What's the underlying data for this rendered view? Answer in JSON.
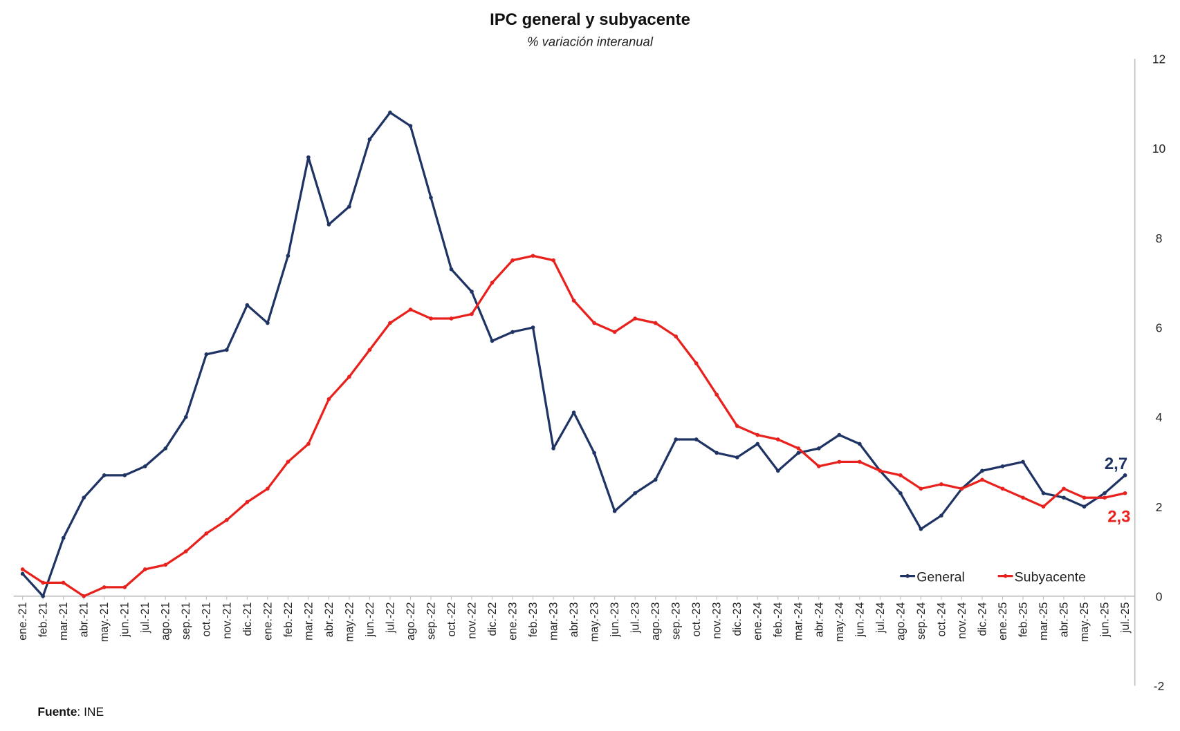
{
  "chart_data": {
    "type": "line",
    "title": "IPC general y subyacente",
    "subtitle": "% variación interanual",
    "source_label": "Fuente",
    "source_value": ": INE",
    "ylim": [
      -2,
      12
    ],
    "yticks": [
      -2,
      0,
      2,
      4,
      6,
      8,
      10,
      12
    ],
    "y_axis_position": "right",
    "grid": false,
    "legend_position": "bottom-right",
    "categories": [
      "ene.-21",
      "feb.-21",
      "mar.-21",
      "abr.-21",
      "may.-21",
      "jun.-21",
      "jul.-21",
      "ago.-21",
      "sep.-21",
      "oct.-21",
      "nov.-21",
      "dic.-21",
      "ene.-22",
      "feb.-22",
      "mar.-22",
      "abr.-22",
      "may.-22",
      "jun.-22",
      "jul.-22",
      "ago.-22",
      "sep.-22",
      "oct.-22",
      "nov.-22",
      "dic.-22",
      "ene.-23",
      "feb.-23",
      "mar.-23",
      "abr.-23",
      "may.-23",
      "jun.-23",
      "jul.-23",
      "ago.-23",
      "sep.-23",
      "oct.-23",
      "nov.-23",
      "dic.-23",
      "ene.-24",
      "feb.-24",
      "mar.-24",
      "abr.-24",
      "may.-24",
      "jun.-24",
      "jul.-24",
      "ago.-24",
      "sep.-24",
      "oct.-24",
      "nov.-24",
      "dic.-24",
      "ene.-25",
      "feb.-25",
      "mar.-25",
      "abr.-25",
      "may.-25",
      "jun.-25",
      "jul.-25"
    ],
    "series": [
      {
        "name": "General",
        "color": "#1f3464",
        "end_label": "2,7",
        "values": [
          0.5,
          0.0,
          1.3,
          2.2,
          2.7,
          2.7,
          2.9,
          3.3,
          4.0,
          5.4,
          5.5,
          6.5,
          6.1,
          7.6,
          9.8,
          8.3,
          8.7,
          10.2,
          10.8,
          10.5,
          8.9,
          7.3,
          6.8,
          5.7,
          5.9,
          6.0,
          3.3,
          4.1,
          3.2,
          1.9,
          2.3,
          2.6,
          3.5,
          3.5,
          3.2,
          3.1,
          3.4,
          2.8,
          3.2,
          3.3,
          3.6,
          3.4,
          2.8,
          2.3,
          1.5,
          1.8,
          2.4,
          2.8,
          2.9,
          3.0,
          2.3,
          2.2,
          2.0,
          2.3,
          2.7
        ]
      },
      {
        "name": "Subyacente",
        "color": "#e8211d",
        "end_label": "2,3",
        "values": [
          0.6,
          0.3,
          0.3,
          0.0,
          0.2,
          0.2,
          0.6,
          0.7,
          1.0,
          1.4,
          1.7,
          2.1,
          2.4,
          3.0,
          3.4,
          4.4,
          4.9,
          5.5,
          6.1,
          6.4,
          6.2,
          6.2,
          6.3,
          7.0,
          7.5,
          7.6,
          7.5,
          6.6,
          6.1,
          5.9,
          6.2,
          6.1,
          5.8,
          5.2,
          4.5,
          3.8,
          3.6,
          3.5,
          3.3,
          2.9,
          3.0,
          3.0,
          2.8,
          2.7,
          2.4,
          2.5,
          2.4,
          2.6,
          2.4,
          2.2,
          2.0,
          2.4,
          2.2,
          2.2,
          2.3
        ]
      }
    ]
  }
}
